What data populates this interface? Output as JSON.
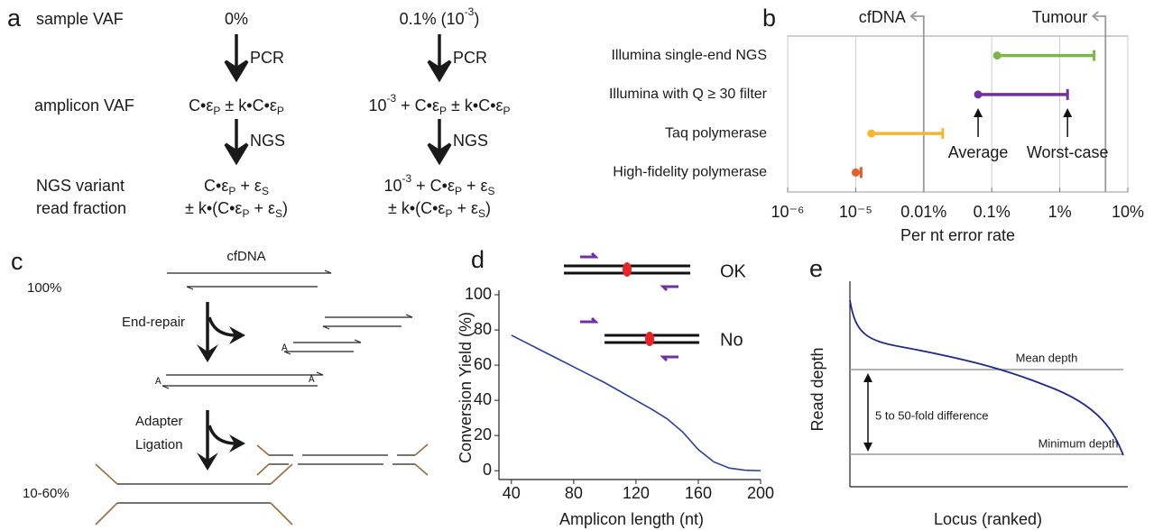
{
  "panel_a": {
    "label": "a",
    "row_labels": [
      "sample VAF",
      "amplicon VAF",
      "NGS variant",
      "read fraction"
    ],
    "columns": [
      {
        "sample": [
          "0%"
        ],
        "step1": "PCR",
        "amplicon": [
          "C•ε",
          {
            "sub": "P"
          },
          " ± k•C•ε",
          {
            "sub": "P"
          }
        ],
        "step2": "NGS",
        "read_fraction": [
          [
            "C•ε",
            {
              "sub": "P"
            },
            " + ε",
            {
              "sub": "S"
            }
          ],
          [
            "± k•(C•ε",
            {
              "sub": "P"
            },
            " + ε",
            {
              "sub": "S"
            },
            ")"
          ]
        ]
      },
      {
        "sample": [
          "0.1% (10",
          {
            "sup": "-3"
          },
          ")"
        ],
        "step1": "PCR",
        "amplicon": [
          "10",
          {
            "sup": "-3"
          },
          " + C•ε",
          {
            "sub": "P"
          },
          " ± k•C•ε",
          {
            "sub": "P"
          }
        ],
        "step2": "NGS",
        "read_fraction": [
          [
            "10",
            {
              "sup": "-3"
            },
            " + C•ε",
            {
              "sub": "P"
            },
            " + ε",
            {
              "sub": "S"
            }
          ],
          [
            "± k•(C•ε",
            {
              "sub": "P"
            },
            " + ε",
            {
              "sub": "S"
            },
            ")"
          ]
        ]
      }
    ]
  },
  "panel_c": {
    "label": "c",
    "title": "cfDNA",
    "input_yield": "100%",
    "step1": "End-repair",
    "tail_labels": [
      "A",
      "A",
      "A"
    ],
    "step2": [
      "Adapter",
      "Ligation"
    ],
    "output_yield": "10-60%"
  },
  "panel_e": {
    "label": "e",
    "ylabel": "Read depth",
    "xlabel": "Locus (ranked)",
    "mean_label": "Mean depth",
    "min_label": "Minimum depth",
    "range_label": "5 to 50-fold difference"
  },
  "chart_data": [
    {
      "type": "interval",
      "label": "b",
      "categories": [
        "Illumina single-end NGS",
        "Illumina with Q ≥ 30 filter",
        "Taq polymerase",
        "High-fidelity polymerase"
      ],
      "low": [
        0.0012,
        0.00063,
        1.7e-05,
        1e-05
      ],
      "high": [
        0.032,
        0.013,
        0.00019,
        1.2e-05
      ],
      "colors": [
        "#7ab648",
        "#7030a0",
        "#f2b630",
        "#e35d2a"
      ],
      "xscale": "log",
      "xlim": [
        1e-06,
        0.1
      ],
      "xticks": [
        {
          "value": 1e-06,
          "label": "10⁻⁶"
        },
        {
          "value": 1e-05,
          "label": "10⁻⁵"
        },
        {
          "value": 0.0001,
          "label": "0.01%"
        },
        {
          "value": 0.001,
          "label": "0.1%"
        },
        {
          "value": 0.01,
          "label": "1%"
        },
        {
          "value": 0.1,
          "label": "10%"
        }
      ],
      "xlabel": "Per nt error rate",
      "grid": true,
      "thresholds": [
        {
          "value": 0.0001,
          "label": "cfDNA"
        },
        {
          "value": 0.047,
          "label": "Tumour"
        }
      ],
      "annotations": [
        {
          "text": "Average",
          "x": 0.00063
        },
        {
          "text": "Worst-case",
          "x": 0.013
        }
      ]
    },
    {
      "type": "line",
      "label": "d",
      "x": [
        40,
        50,
        60,
        70,
        80,
        90,
        100,
        110,
        120,
        130,
        140,
        150,
        160,
        170,
        180,
        190,
        200
      ],
      "values": [
        77,
        72.5,
        68,
        63.5,
        59,
        54.5,
        50,
        45,
        40,
        35,
        29.5,
        22,
        12,
        5,
        1.5,
        0.3,
        0
      ],
      "color": "#2a3f9e",
      "xlim": [
        32,
        200
      ],
      "ylim": [
        -5,
        100
      ],
      "xticks": [
        40,
        80,
        120,
        160,
        200
      ],
      "yticks": [
        0,
        20,
        40,
        60,
        80,
        100
      ],
      "xlabel": "Amplicon length (nt)",
      "ylabel": "Conversion Yield (%)",
      "insets": [
        {
          "text": "OK",
          "color": "#2e86c8"
        },
        {
          "text": "No",
          "color": "#e8262a"
        }
      ]
    }
  ]
}
